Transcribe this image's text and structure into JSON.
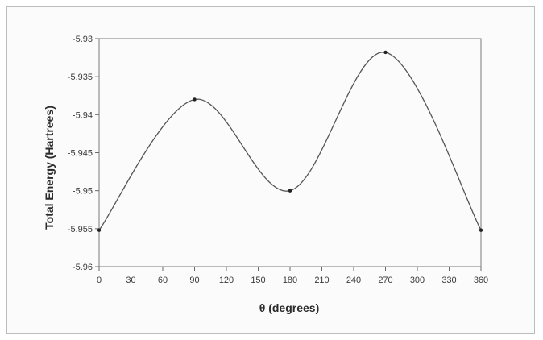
{
  "chart_data": {
    "type": "line",
    "title": "",
    "xlabel": "θ (degrees)",
    "ylabel": "Total Energy (Hartrees)",
    "xlim": [
      0,
      360
    ],
    "ylim": [
      -5.96,
      -5.93
    ],
    "x_ticks": [
      "0",
      "30",
      "60",
      "90",
      "120",
      "150",
      "180",
      "210",
      "240",
      "270",
      "300",
      "330",
      "360"
    ],
    "y_ticks": [
      "-5.93",
      "-5.935",
      "-5.94",
      "-5.945",
      "-5.95",
      "-5.955",
      "-5.96"
    ],
    "grid": false,
    "legend": "none",
    "series": [
      {
        "points": [
          {
            "x": 0,
            "y": -5.9552
          },
          {
            "x": 90,
            "y": -5.938
          },
          {
            "x": 180,
            "y": -5.95
          },
          {
            "x": 270,
            "y": -5.9318
          },
          {
            "x": 360,
            "y": -5.9552
          }
        ],
        "color": "#555555"
      }
    ]
  }
}
